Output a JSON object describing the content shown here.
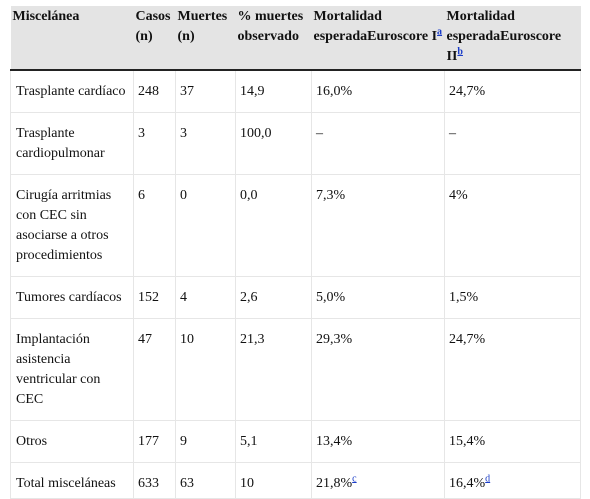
{
  "table": {
    "headers": [
      {
        "text": "Miscelánea",
        "sup": ""
      },
      {
        "text": "Casos (n)",
        "sup": ""
      },
      {
        "text": "Muertes (n)",
        "sup": ""
      },
      {
        "text": "% muertes observado",
        "sup": ""
      },
      {
        "text": "Mortalidad esperadaEuroscore I",
        "sup": "a"
      },
      {
        "text": "Mortalidad esperadaEuroscore II",
        "sup": "b"
      }
    ],
    "rows": [
      {
        "cells": [
          {
            "text": "Trasplante cardíaco",
            "sup": ""
          },
          {
            "text": "248",
            "sup": ""
          },
          {
            "text": "37",
            "sup": ""
          },
          {
            "text": "14,9",
            "sup": ""
          },
          {
            "text": "16,0%",
            "sup": ""
          },
          {
            "text": "24,7%",
            "sup": ""
          }
        ]
      },
      {
        "cells": [
          {
            "text": "Trasplante cardiopulmonar",
            "sup": ""
          },
          {
            "text": "3",
            "sup": ""
          },
          {
            "text": "3",
            "sup": ""
          },
          {
            "text": "100,0",
            "sup": ""
          },
          {
            "text": "–",
            "sup": ""
          },
          {
            "text": "–",
            "sup": ""
          }
        ]
      },
      {
        "cells": [
          {
            "text": "Cirugía arritmias con CEC sin asociarse a otros procedimientos",
            "sup": ""
          },
          {
            "text": "6",
            "sup": ""
          },
          {
            "text": "0",
            "sup": ""
          },
          {
            "text": "0,0",
            "sup": ""
          },
          {
            "text": "7,3%",
            "sup": ""
          },
          {
            "text": "4%",
            "sup": ""
          }
        ]
      },
      {
        "cells": [
          {
            "text": "Tumores cardíacos",
            "sup": ""
          },
          {
            "text": "152",
            "sup": ""
          },
          {
            "text": "4",
            "sup": ""
          },
          {
            "text": "2,6",
            "sup": ""
          },
          {
            "text": "5,0%",
            "sup": ""
          },
          {
            "text": "1,5%",
            "sup": ""
          }
        ]
      },
      {
        "cells": [
          {
            "text": "Implantación asistencia ventricular con CEC",
            "sup": ""
          },
          {
            "text": "47",
            "sup": ""
          },
          {
            "text": "10",
            "sup": ""
          },
          {
            "text": "21,3",
            "sup": ""
          },
          {
            "text": "29,3%",
            "sup": ""
          },
          {
            "text": "24,7%",
            "sup": ""
          }
        ]
      },
      {
        "cells": [
          {
            "text": "Otros",
            "sup": ""
          },
          {
            "text": "177",
            "sup": ""
          },
          {
            "text": "9",
            "sup": ""
          },
          {
            "text": "5,1",
            "sup": ""
          },
          {
            "text": "13,4%",
            "sup": ""
          },
          {
            "text": "15,4%",
            "sup": ""
          }
        ]
      },
      {
        "cells": [
          {
            "text": "Total misceláneas",
            "sup": ""
          },
          {
            "text": "633",
            "sup": ""
          },
          {
            "text": "63",
            "sup": ""
          },
          {
            "text": "10",
            "sup": ""
          },
          {
            "text": "21,8%",
            "sup": "c"
          },
          {
            "text": "16,4%",
            "sup": "d"
          }
        ]
      }
    ]
  },
  "colors": {
    "header_bg": "#e4e4e4",
    "grid_line": "#e6e6e6",
    "footnote_link": "#1a3cc8"
  }
}
